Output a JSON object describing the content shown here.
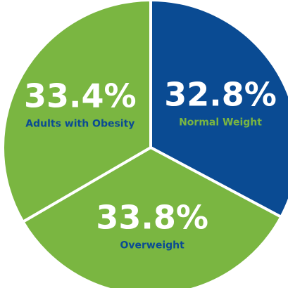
{
  "chart_data": {
    "type": "pie",
    "title": "",
    "slices": [
      {
        "label": "Normal Weight",
        "value_label": "32.8%",
        "value": 32.8,
        "color": "#0a4b93",
        "label_color": "#7ab641"
      },
      {
        "label": "Overweight",
        "value_label": "33.8%",
        "value": 33.8,
        "color": "#7ab641",
        "label_color": "#0a4b93"
      },
      {
        "label": "Adults with Obesity",
        "value_label": "33.4%",
        "value": 33.4,
        "color": "#7ab641",
        "label_color": "#0a4b93"
      }
    ]
  }
}
